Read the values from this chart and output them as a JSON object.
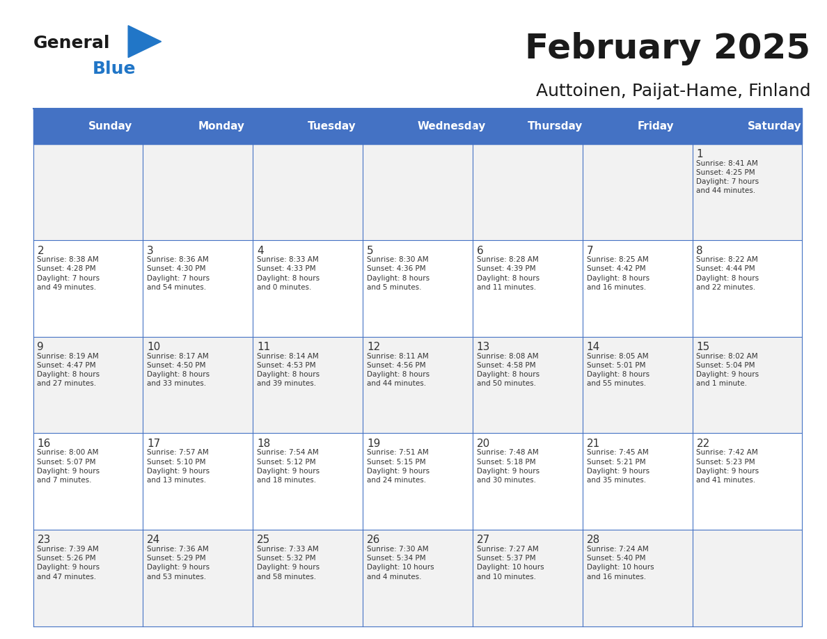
{
  "title": "February 2025",
  "subtitle": "Auttoinen, Paijat-Hame, Finland",
  "days_of_week": [
    "Sunday",
    "Monday",
    "Tuesday",
    "Wednesday",
    "Thursday",
    "Friday",
    "Saturday"
  ],
  "header_bg": "#4472C4",
  "header_text": "#FFFFFF",
  "cell_bg_light": "#F2F2F2",
  "cell_bg_white": "#FFFFFF",
  "border_color": "#4472C4",
  "text_color": "#333333",
  "day_num_color": "#333333",
  "title_color": "#1a1a1a",
  "weeks": [
    [
      null,
      null,
      null,
      null,
      null,
      null,
      {
        "day": 1,
        "sunrise": "8:41 AM",
        "sunset": "4:25 PM",
        "daylight": "7 hours\nand 44 minutes."
      }
    ],
    [
      {
        "day": 2,
        "sunrise": "8:38 AM",
        "sunset": "4:28 PM",
        "daylight": "7 hours\nand 49 minutes."
      },
      {
        "day": 3,
        "sunrise": "8:36 AM",
        "sunset": "4:30 PM",
        "daylight": "7 hours\nand 54 minutes."
      },
      {
        "day": 4,
        "sunrise": "8:33 AM",
        "sunset": "4:33 PM",
        "daylight": "8 hours\nand 0 minutes."
      },
      {
        "day": 5,
        "sunrise": "8:30 AM",
        "sunset": "4:36 PM",
        "daylight": "8 hours\nand 5 minutes."
      },
      {
        "day": 6,
        "sunrise": "8:28 AM",
        "sunset": "4:39 PM",
        "daylight": "8 hours\nand 11 minutes."
      },
      {
        "day": 7,
        "sunrise": "8:25 AM",
        "sunset": "4:42 PM",
        "daylight": "8 hours\nand 16 minutes."
      },
      {
        "day": 8,
        "sunrise": "8:22 AM",
        "sunset": "4:44 PM",
        "daylight": "8 hours\nand 22 minutes."
      }
    ],
    [
      {
        "day": 9,
        "sunrise": "8:19 AM",
        "sunset": "4:47 PM",
        "daylight": "8 hours\nand 27 minutes."
      },
      {
        "day": 10,
        "sunrise": "8:17 AM",
        "sunset": "4:50 PM",
        "daylight": "8 hours\nand 33 minutes."
      },
      {
        "day": 11,
        "sunrise": "8:14 AM",
        "sunset": "4:53 PM",
        "daylight": "8 hours\nand 39 minutes."
      },
      {
        "day": 12,
        "sunrise": "8:11 AM",
        "sunset": "4:56 PM",
        "daylight": "8 hours\nand 44 minutes."
      },
      {
        "day": 13,
        "sunrise": "8:08 AM",
        "sunset": "4:58 PM",
        "daylight": "8 hours\nand 50 minutes."
      },
      {
        "day": 14,
        "sunrise": "8:05 AM",
        "sunset": "5:01 PM",
        "daylight": "8 hours\nand 55 minutes."
      },
      {
        "day": 15,
        "sunrise": "8:02 AM",
        "sunset": "5:04 PM",
        "daylight": "9 hours\nand 1 minute."
      }
    ],
    [
      {
        "day": 16,
        "sunrise": "8:00 AM",
        "sunset": "5:07 PM",
        "daylight": "9 hours\nand 7 minutes."
      },
      {
        "day": 17,
        "sunrise": "7:57 AM",
        "sunset": "5:10 PM",
        "daylight": "9 hours\nand 13 minutes."
      },
      {
        "day": 18,
        "sunrise": "7:54 AM",
        "sunset": "5:12 PM",
        "daylight": "9 hours\nand 18 minutes."
      },
      {
        "day": 19,
        "sunrise": "7:51 AM",
        "sunset": "5:15 PM",
        "daylight": "9 hours\nand 24 minutes."
      },
      {
        "day": 20,
        "sunrise": "7:48 AM",
        "sunset": "5:18 PM",
        "daylight": "9 hours\nand 30 minutes."
      },
      {
        "day": 21,
        "sunrise": "7:45 AM",
        "sunset": "5:21 PM",
        "daylight": "9 hours\nand 35 minutes."
      },
      {
        "day": 22,
        "sunrise": "7:42 AM",
        "sunset": "5:23 PM",
        "daylight": "9 hours\nand 41 minutes."
      }
    ],
    [
      {
        "day": 23,
        "sunrise": "7:39 AM",
        "sunset": "5:26 PM",
        "daylight": "9 hours\nand 47 minutes."
      },
      {
        "day": 24,
        "sunrise": "7:36 AM",
        "sunset": "5:29 PM",
        "daylight": "9 hours\nand 53 minutes."
      },
      {
        "day": 25,
        "sunrise": "7:33 AM",
        "sunset": "5:32 PM",
        "daylight": "9 hours\nand 58 minutes."
      },
      {
        "day": 26,
        "sunrise": "7:30 AM",
        "sunset": "5:34 PM",
        "daylight": "10 hours\nand 4 minutes."
      },
      {
        "day": 27,
        "sunrise": "7:27 AM",
        "sunset": "5:37 PM",
        "daylight": "10 hours\nand 10 minutes."
      },
      {
        "day": 28,
        "sunrise": "7:24 AM",
        "sunset": "5:40 PM",
        "daylight": "10 hours\nand 16 minutes."
      },
      null
    ]
  ]
}
